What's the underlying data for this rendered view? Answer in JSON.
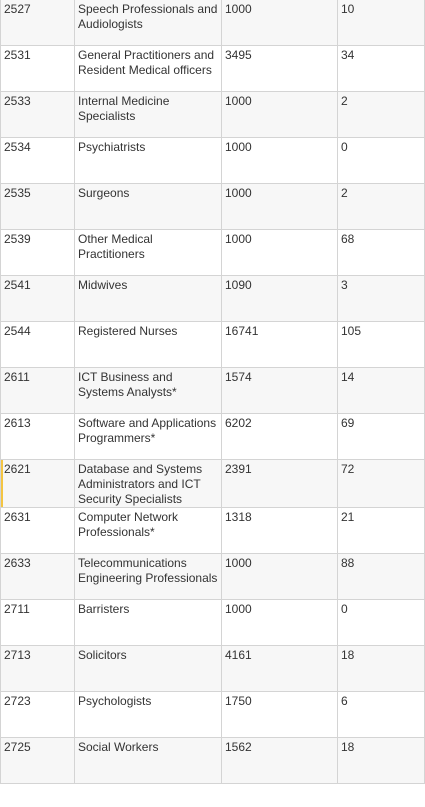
{
  "table": {
    "rows": [
      {
        "code": "2527",
        "occupation": "Speech Professionals and Audiologists",
        "ceiling": "1000",
        "count": "10"
      },
      {
        "code": "2531",
        "occupation": "General Practitioners and Resident Medical officers",
        "ceiling": "3495",
        "count": "34"
      },
      {
        "code": "2533",
        "occupation": "Internal Medicine Specialists",
        "ceiling": "1000",
        "count": "2"
      },
      {
        "code": "2534",
        "occupation": "Psychiatrists",
        "ceiling": "1000",
        "count": "0"
      },
      {
        "code": "2535",
        "occupation": "Surgeons",
        "ceiling": "1000",
        "count": "2"
      },
      {
        "code": "2539",
        "occupation": "Other Medical Practitioners",
        "ceiling": "1000",
        "count": "68"
      },
      {
        "code": "2541",
        "occupation": "Midwives",
        "ceiling": "1090",
        "count": "3"
      },
      {
        "code": "2544",
        "occupation": "Registered Nurses",
        "ceiling": "16741",
        "count": "105"
      },
      {
        "code": "2611",
        "occupation": "ICT Business and Systems Analysts*",
        "ceiling": "1574",
        "count": "14"
      },
      {
        "code": "2613",
        "occupation": "Software and Applications Programmers*",
        "ceiling": "6202",
        "count": "69"
      },
      {
        "code": "2621",
        "occupation": "Database and Systems Administrators and ICT Security Specialists",
        "ceiling": "2391",
        "count": "72"
      },
      {
        "code": "2631",
        "occupation": "Computer Network Professionals*",
        "ceiling": "1318",
        "count": "21"
      },
      {
        "code": "2633",
        "occupation": "Telecommunications Engineering Professionals",
        "ceiling": "1000",
        "count": "88"
      },
      {
        "code": "2711",
        "occupation": "Barristers",
        "ceiling": "1000",
        "count": "0"
      },
      {
        "code": "2713",
        "occupation": "Solicitors",
        "ceiling": "4161",
        "count": "18"
      },
      {
        "code": "2723",
        "occupation": "Psychologists",
        "ceiling": "1750",
        "count": "6"
      },
      {
        "code": "2725",
        "occupation": "Social Workers",
        "ceiling": "1562",
        "count": "18"
      }
    ]
  },
  "colors": {
    "border": "#d4d4d4",
    "text": "#333333",
    "row_alt": "#f7f7f7",
    "marker": "#f4c542"
  }
}
